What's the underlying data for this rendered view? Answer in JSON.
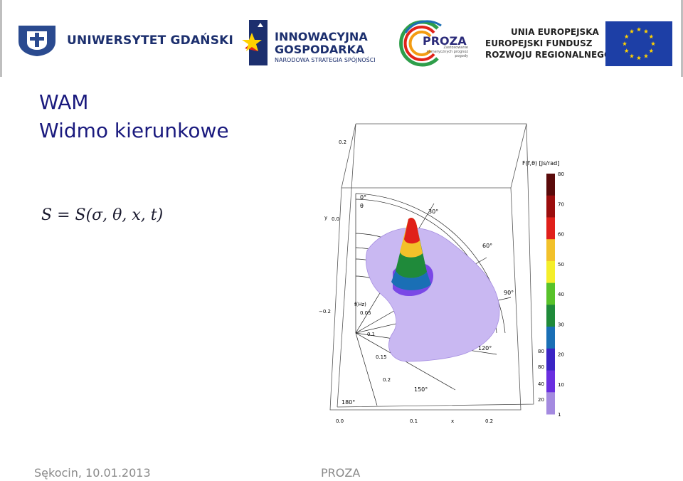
{
  "logos": {
    "ug_name": "UNIWERSYTET GDAŃSKI",
    "ig_line1": "INNOWACYJNA",
    "ig_line2": "GOSPODARKA",
    "ig_line3": "NARODOWA STRATEGIA SPÓJNOŚCI",
    "proza_name": "PROZA",
    "proza_tagline": "Zastosowanie numerycznych prognoz pogody",
    "ue_line1": "UNIA EUROPEJSKA",
    "ue_line2": "EUROPEJSKI FUNDUSZ",
    "ue_line3": "ROZWOJU REGIONALNEGO"
  },
  "slide": {
    "title_line1": "WAM",
    "title_line2": "Widmo kierunkowe",
    "formula": "S = S(σ, θ, x, t)"
  },
  "figure": {
    "colorbar_title": "F(f,θ) [Js/rad]",
    "colorbar_ticks": [
      "80",
      "70",
      "60",
      "50",
      "40",
      "30",
      "20",
      "10",
      "1"
    ],
    "colorbar_colors": [
      "#5a0a0a",
      "#9b0d0d",
      "#e0201a",
      "#f2c12a",
      "#f4ee2a",
      "#58c22a",
      "#1f8a3a",
      "#1a6fb5",
      "#3a24c4",
      "#6a2fe0",
      "#a48ae0"
    ],
    "angle_labels": [
      "0°",
      "θ",
      "30°",
      "60°",
      "90°",
      "120°",
      "150°",
      "180°"
    ],
    "freq_labels": [
      "f(Hz)",
      "0.05",
      "0.1",
      "0.15",
      "0.2"
    ],
    "axis_labels": {
      "y": "y",
      "x": "x"
    },
    "y_ticks": [
      "0.2",
      "0.0",
      "−0.2"
    ],
    "x_ticks": [
      "0.0",
      "0.1",
      "0.2"
    ],
    "z_ticks": [
      "80",
      "80",
      "40",
      "20"
    ]
  },
  "footer": {
    "left": "Sękocin, 10.01.2013",
    "center": "PROZA"
  }
}
